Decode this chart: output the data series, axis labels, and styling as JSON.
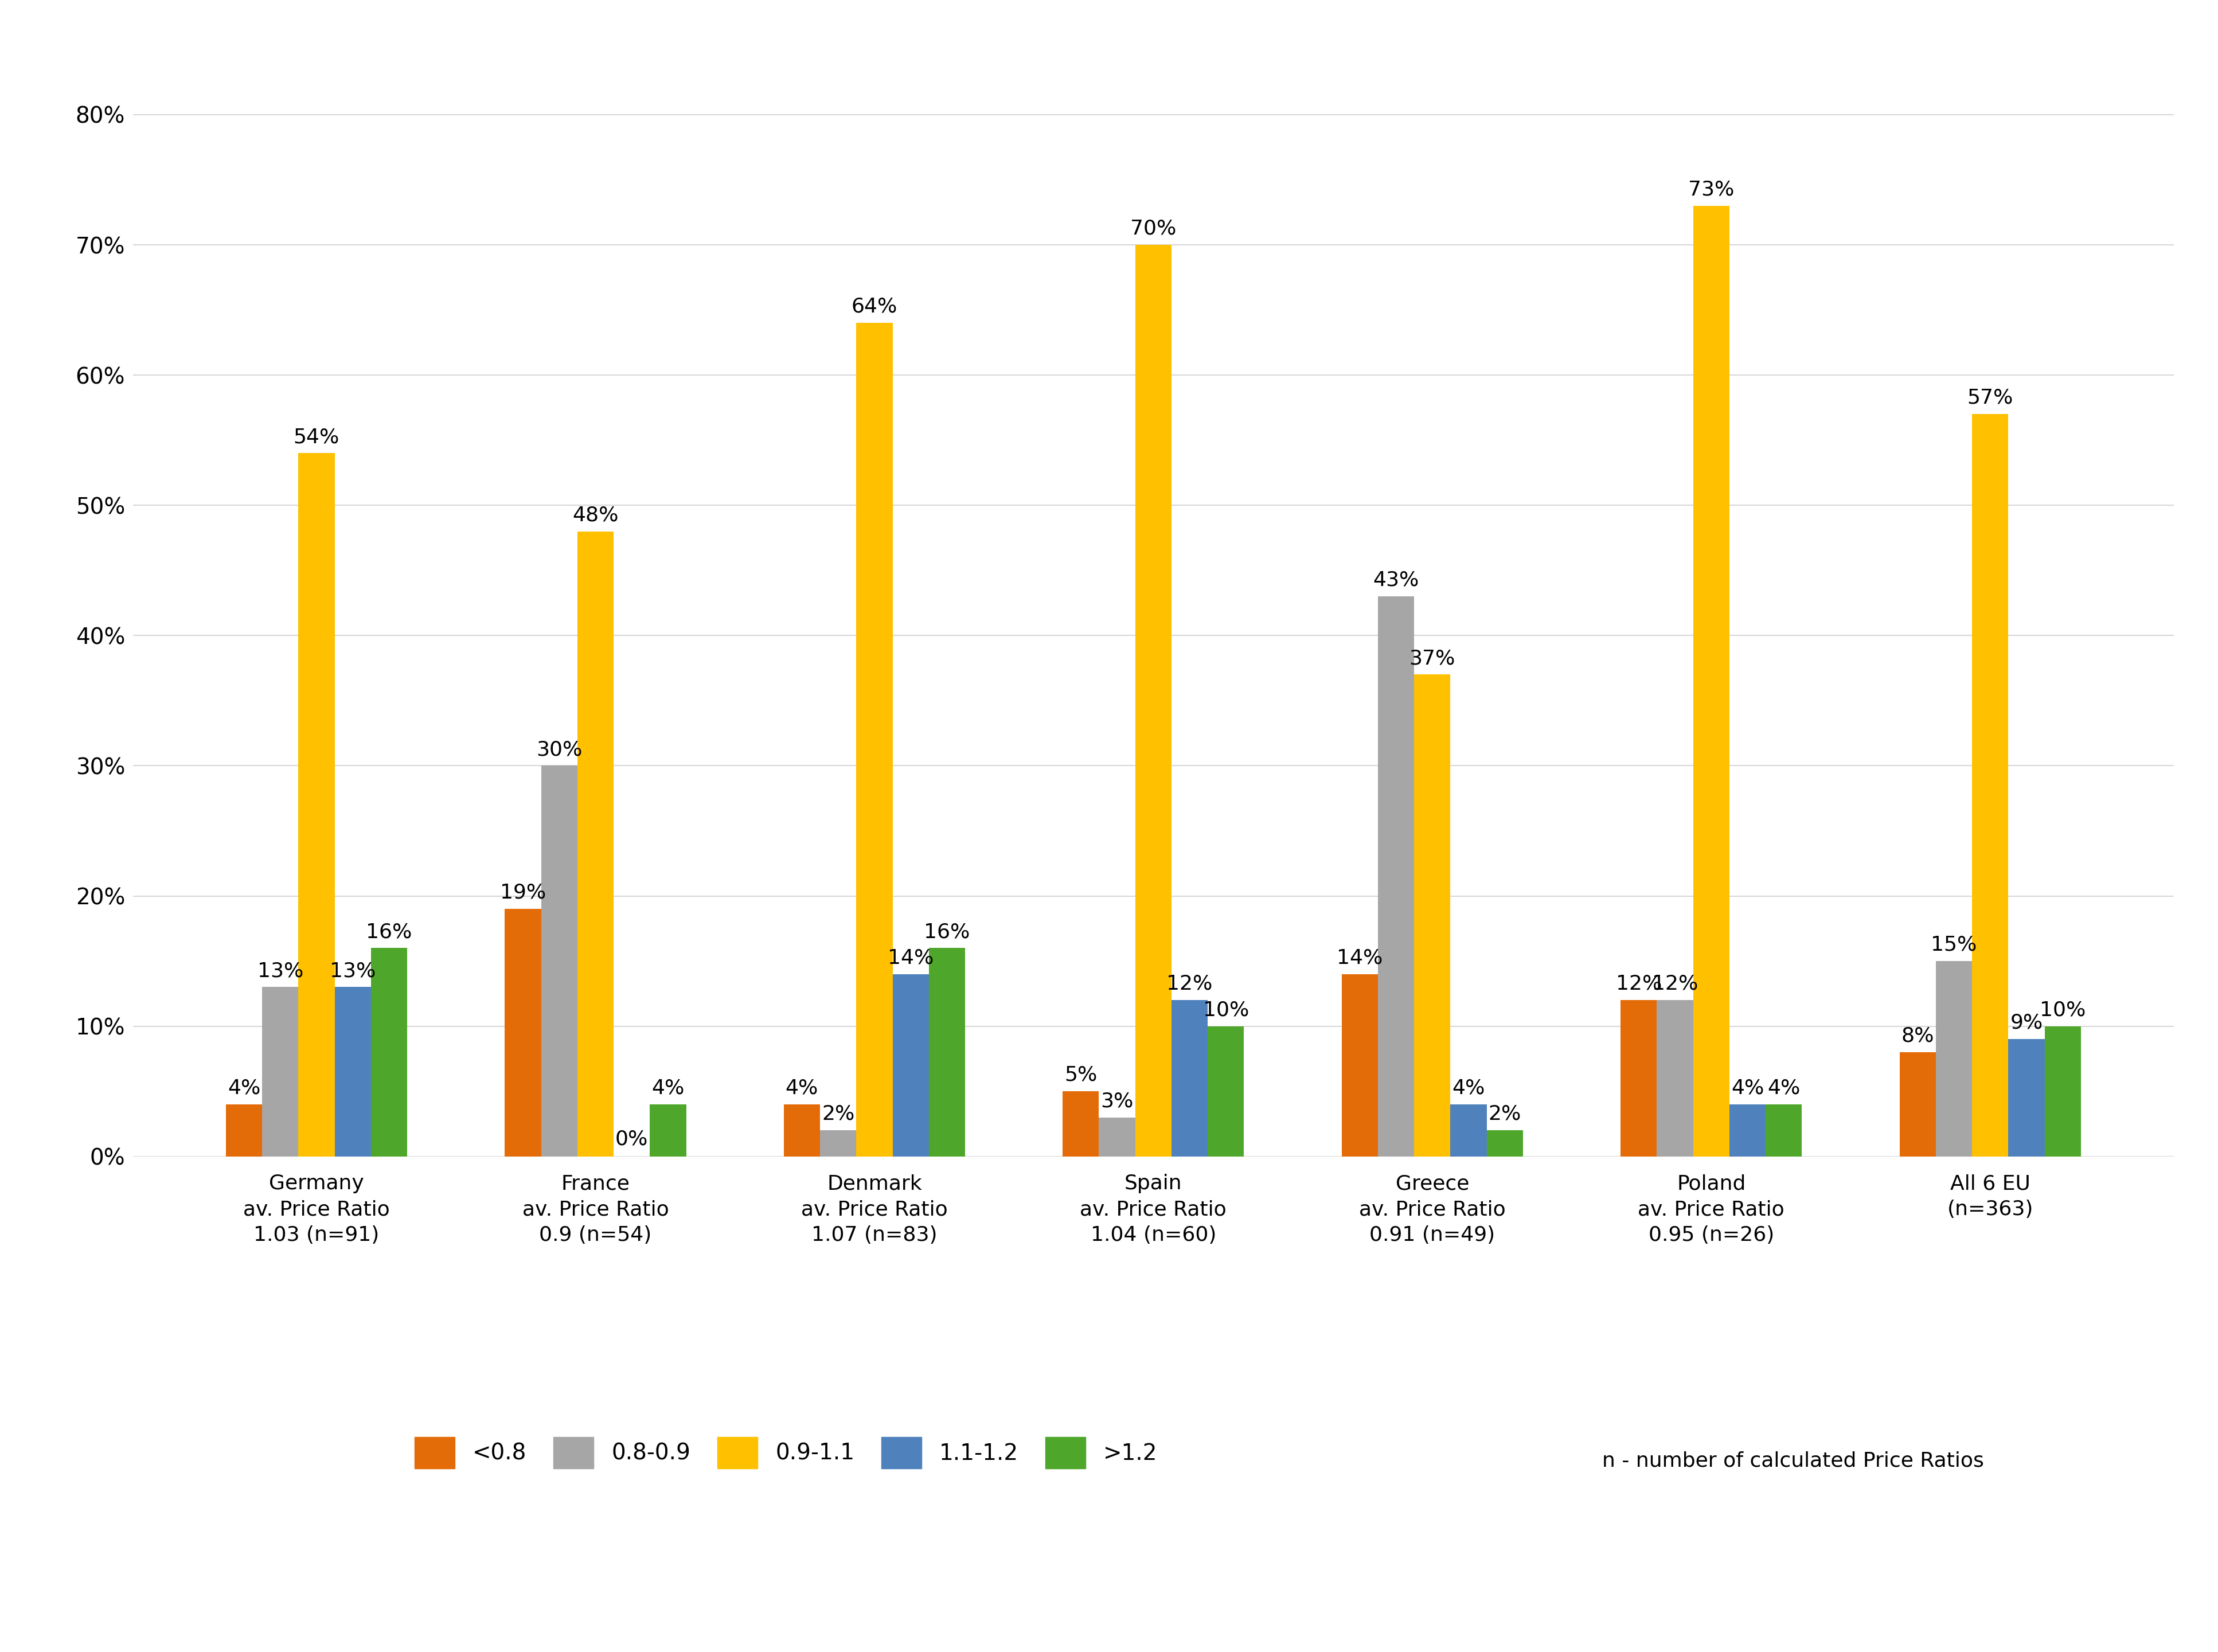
{
  "categories": [
    "Germany\nav. Price Ratio\n1.03 (n=91)",
    "France\nav. Price Ratio\n0.9 (n=54)",
    "Denmark\nav. Price Ratio\n1.07 (n=83)",
    "Spain\nav. Price Ratio\n1.04 (n=60)",
    "Greece\nav. Price Ratio\n0.91 (n=49)",
    "Poland\nav. Price Ratio\n0.95 (n=26)",
    "All 6 EU\n(n=363)"
  ],
  "series": {
    "<0.8": [
      4,
      19,
      4,
      5,
      14,
      12,
      8
    ],
    "0.8-0.9": [
      13,
      30,
      2,
      3,
      43,
      12,
      15
    ],
    "0.9-1.1": [
      54,
      48,
      64,
      70,
      37,
      73,
      57
    ],
    "1.1-1.2": [
      13,
      0,
      14,
      12,
      4,
      4,
      9
    ],
    ">1.2": [
      16,
      4,
      16,
      10,
      2,
      4,
      10
    ]
  },
  "colors": {
    "<0.8": "#E36C09",
    "0.8-0.9": "#A6A6A6",
    "0.9-1.1": "#FFC000",
    "1.1-1.2": "#4F81BD",
    ">1.2": "#4EA72A"
  },
  "ylim": [
    0,
    85
  ],
  "yticks": [
    0,
    10,
    20,
    30,
    40,
    50,
    60,
    70,
    80
  ],
  "ytick_labels": [
    "0%",
    "10%",
    "20%",
    "30%",
    "40%",
    "50%",
    "60%",
    "70%",
    "80%"
  ],
  "legend_note": "n - number of calculated Price Ratios",
  "background_color": "#FFFFFF",
  "grid_color": "#D8D8D8"
}
